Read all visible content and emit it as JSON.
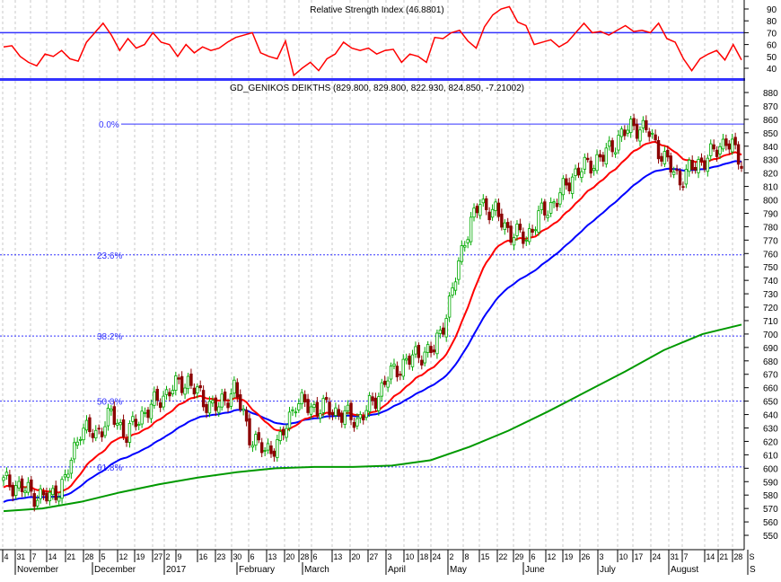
{
  "colors": {
    "rsi": "#ff0000",
    "ref": "#3333ff",
    "ma_fast": "#ff0000",
    "ma_mid": "#0000ff",
    "ma_slow": "#009900",
    "up": "#00aa00",
    "down": "#8b0000"
  },
  "chart_data": [
    {
      "type": "line",
      "title": "Relative Strength Index (46.8801)",
      "yticks": [
        40,
        50,
        60,
        70,
        80,
        90
      ],
      "ylim": [
        30,
        95
      ],
      "reference_line": 70,
      "values": [
        58,
        59,
        50,
        45,
        42,
        52,
        50,
        55,
        48,
        46,
        62,
        70,
        78,
        68,
        55,
        65,
        57,
        60,
        70,
        62,
        60,
        50,
        60,
        53,
        58,
        55,
        57,
        62,
        66,
        68,
        70,
        53,
        50,
        48,
        63,
        34,
        40,
        45,
        38,
        48,
        52,
        62,
        57,
        55,
        57,
        52,
        55,
        56,
        45,
        52,
        50,
        45,
        66,
        65,
        70,
        72,
        63,
        57,
        75,
        85,
        90,
        92,
        79,
        76,
        60,
        62,
        64,
        58,
        62,
        70,
        78,
        70,
        71,
        68,
        72,
        76,
        71,
        72,
        70,
        78,
        65,
        62,
        48,
        38,
        48,
        52,
        55,
        47,
        60,
        47
      ]
    },
    {
      "type": "candlestick",
      "title": "GD_GENIKOS DEIKTHS (829.800, 829.800, 822.930, 824.850, -7.21002)",
      "yticks": [
        550,
        560,
        570,
        580,
        590,
        600,
        610,
        620,
        630,
        640,
        650,
        660,
        670,
        680,
        690,
        700,
        710,
        720,
        730,
        740,
        750,
        760,
        770,
        780,
        790,
        800,
        810,
        820,
        830,
        840,
        850,
        860,
        870,
        880
      ],
      "ylim": [
        545,
        885
      ],
      "fibonacci": [
        {
          "label": "0.0%",
          "value": 856.5
        },
        {
          "label": "23.6%",
          "value": 759
        },
        {
          "label": "38.2%",
          "value": 698.5
        },
        {
          "label": "50.0%",
          "value": 650
        },
        {
          "label": "61.8%",
          "value": 601
        }
      ],
      "weekly_closes": [
        590,
        586,
        580,
        578,
        590,
        630,
        625,
        640,
        625,
        640,
        650,
        660,
        665,
        650,
        645,
        660,
        625,
        612,
        620,
        650,
        645,
        645,
        640,
        636,
        648,
        668,
        678,
        685,
        688,
        722,
        772,
        798,
        790,
        775,
        772,
        790,
        800,
        818,
        826,
        832,
        846,
        856,
        850,
        830,
        815,
        826,
        833,
        845,
        828
      ],
      "ma_slow": [
        568,
        570,
        575,
        582,
        588,
        593,
        597,
        600,
        601,
        601,
        602,
        606,
        616,
        628,
        642,
        657,
        672,
        688,
        700,
        707
      ],
      "x_ticks": [
        "4",
        "31",
        "7",
        "14",
        "21",
        "28",
        "5",
        "12",
        "19",
        "27",
        "2",
        "9",
        "16",
        "23",
        "30",
        "6",
        "13",
        "20",
        "28",
        "6",
        "13",
        "20",
        "27",
        "3",
        "10",
        "18",
        "24",
        "2",
        "8",
        "15",
        "22",
        "29",
        "6",
        "12",
        "19",
        "26",
        "3",
        "10",
        "17",
        "24",
        "31",
        "7",
        "14",
        "21",
        "28",
        "S"
      ],
      "months": [
        "November",
        "December",
        "2017",
        "February",
        "March",
        "April",
        "May",
        "June",
        "July",
        "August",
        "S"
      ]
    }
  ]
}
